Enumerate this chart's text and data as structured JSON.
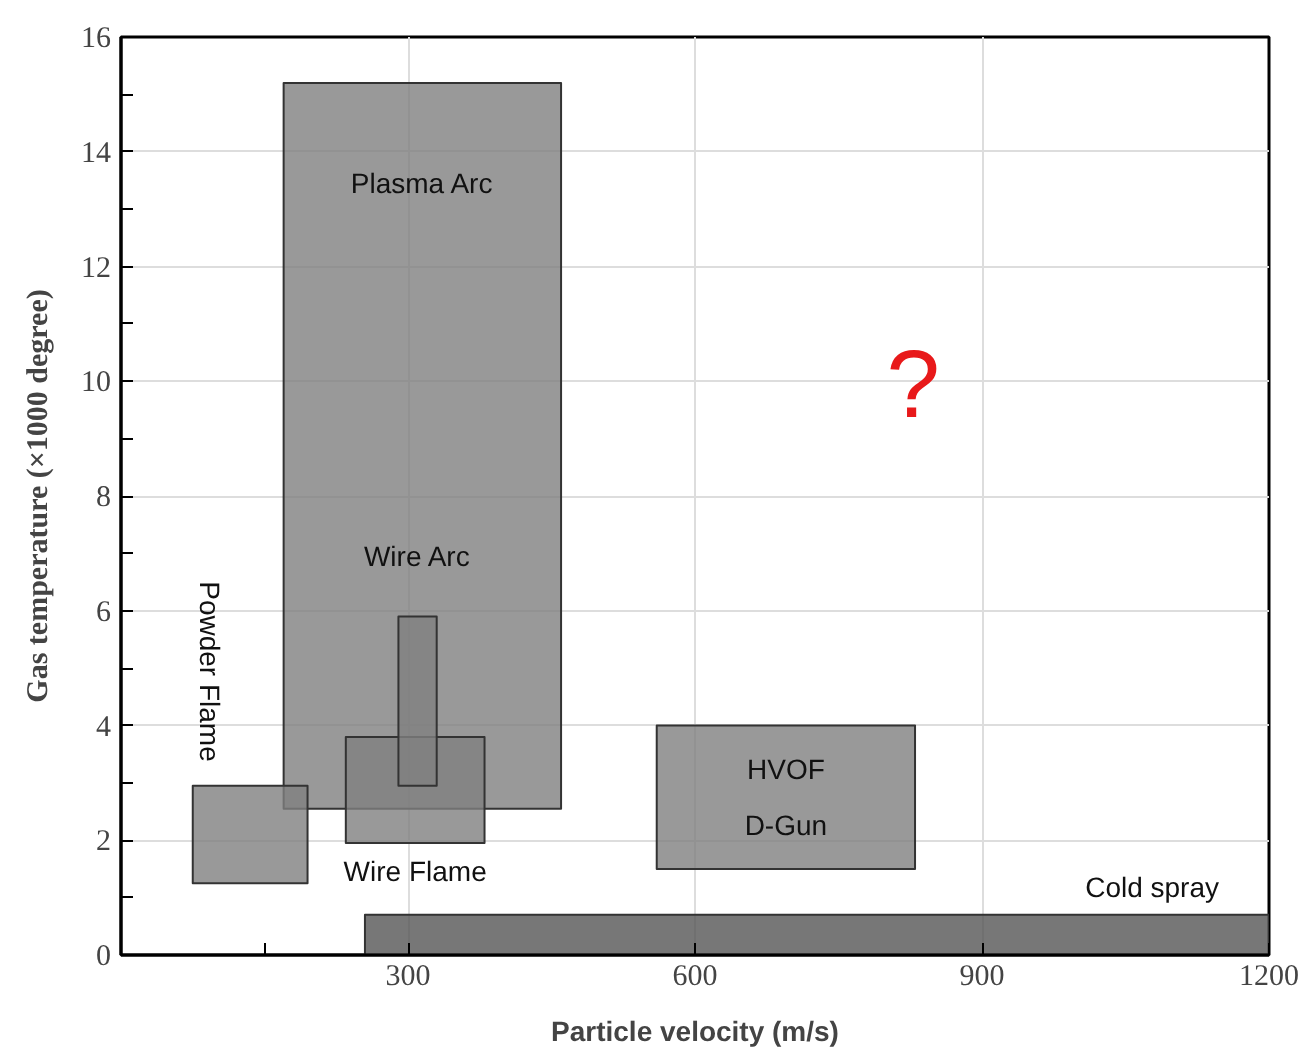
{
  "chart_data": {
    "type": "area",
    "xlabel": "Particle velocity (m/s)",
    "ylabel": "Gas temperature (×1000 degree)",
    "xlim": [
      0,
      1200
    ],
    "ylim": [
      0,
      16
    ],
    "xticks": [
      {
        "value": 150,
        "label": null
      },
      300,
      600,
      900,
      1200
    ],
    "yticks": [
      0,
      {
        "value": 1,
        "label": null
      },
      2,
      {
        "value": 3,
        "label": null
      },
      4,
      {
        "value": 5,
        "label": null
      },
      6,
      {
        "value": 7,
        "label": null
      },
      8,
      {
        "value": 9,
        "label": null
      },
      10,
      {
        "value": 11,
        "label": null
      },
      12,
      {
        "value": 13,
        "label": null
      },
      14,
      {
        "value": 15,
        "label": null
      },
      16
    ],
    "grid": true,
    "series": [
      {
        "name": "Plasma Arc",
        "color": "#7f7f7f",
        "x": [
          170,
          460,
          460,
          170,
          170
        ],
        "values": [
          2.55,
          2.55,
          15.2,
          15.2,
          2.55
        ]
      },
      {
        "name": "Powder Flame",
        "color": "#7f7f7f",
        "x": [
          75,
          195,
          195,
          75,
          75
        ],
        "values": [
          1.25,
          1.25,
          2.95,
          2.95,
          1.25
        ]
      },
      {
        "name": "Wire Flame",
        "color": "#7f7f7f",
        "x": [
          235,
          380,
          380,
          235,
          235
        ],
        "values": [
          1.95,
          1.95,
          3.8,
          3.8,
          1.95
        ]
      },
      {
        "name": "Wire Arc",
        "color": "#7f7f7f",
        "x": [
          290,
          330,
          330,
          290,
          290
        ],
        "values": [
          2.95,
          2.95,
          5.9,
          5.9,
          2.95
        ]
      },
      {
        "name": "HVOF\nD-Gun",
        "color": "#7f7f7f",
        "x": [
          560,
          830,
          830,
          560,
          560
        ],
        "values": [
          1.5,
          1.5,
          4.0,
          4.0,
          1.5
        ]
      },
      {
        "name": "Cold spray",
        "color": "#555555",
        "x": [
          255,
          1200,
          1200,
          255,
          255
        ],
        "values": [
          0,
          0,
          0.7,
          0.7,
          0
        ]
      }
    ],
    "annotations": [
      "?"
    ]
  }
}
